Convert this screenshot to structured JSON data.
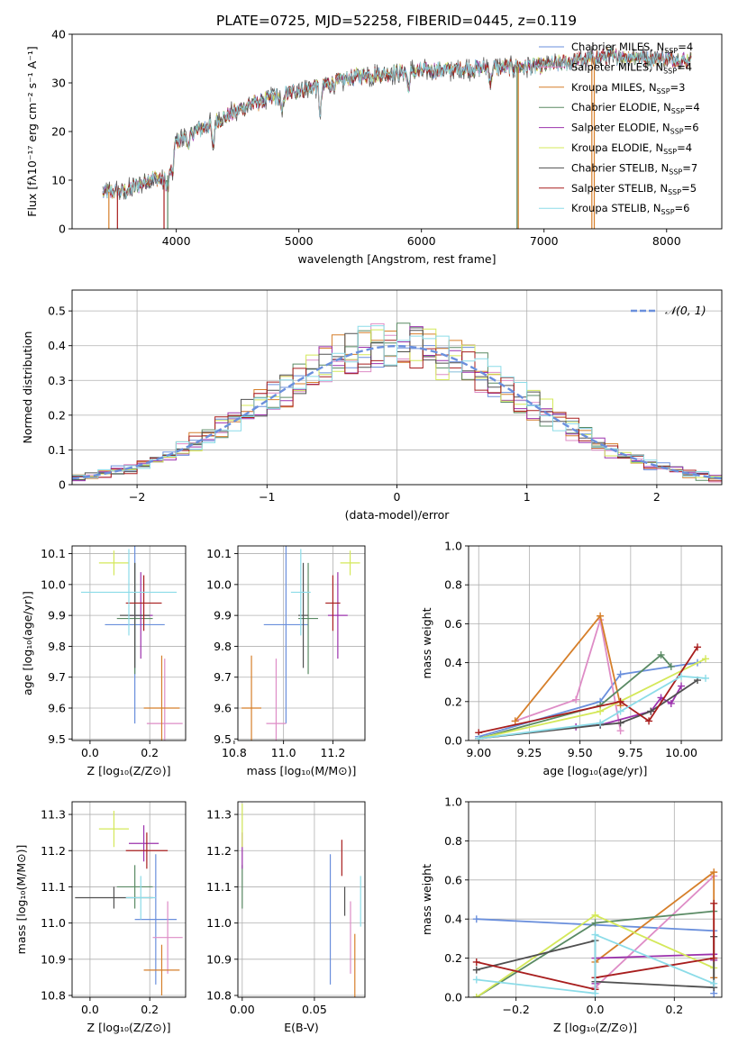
{
  "figure_title": "PLATE=0725, MJD=52258, FIBERID=0445, z=0.119",
  "legend_labels": [
    {
      "name": "Chabrier MILES, N",
      "sub": "SSP",
      "suffix": "=4",
      "color": "#6a8fdc"
    },
    {
      "name": "Salpeter MILES, N",
      "sub": "SSP",
      "suffix": "=4",
      "color": "#de8cc6"
    },
    {
      "name": "Kroupa MILES, N",
      "sub": "SSP",
      "suffix": "=3",
      "color": "#d67f2a"
    },
    {
      "name": "Chabrier ELODIE, N",
      "sub": "SSP",
      "suffix": "=4",
      "color": "#5a8a64"
    },
    {
      "name": "Salpeter ELODIE, N",
      "sub": "SSP",
      "suffix": "=6",
      "color": "#9c32ad"
    },
    {
      "name": "Kroupa ELODIE, N",
      "sub": "SSP",
      "suffix": "=4",
      "color": "#d4e85a"
    },
    {
      "name": "Chabrier STELIB, N",
      "sub": "SSP",
      "suffix": "=7",
      "color": "#505050"
    },
    {
      "name": "Salpeter STELIB, N",
      "sub": "SSP",
      "suffix": "=5",
      "color": "#a81e1e"
    },
    {
      "name": "Kroupa STELIB, N",
      "sub": "SSP",
      "suffix": "=6",
      "color": "#8cdce8"
    }
  ],
  "chart_data": [
    {
      "id": "spectrum",
      "type": "line",
      "xlabel": "wavelength [Angstrom, rest frame]",
      "ylabel": "Flux [fλ10⁻¹⁷ erg cm⁻² s⁻¹ A⁻¹]",
      "xlim": [
        3150,
        8450
      ],
      "ylim": [
        0,
        40
      ],
      "xticks": [
        4000,
        5000,
        6000,
        7000,
        8000
      ],
      "yticks": [
        0,
        10,
        20,
        30,
        40
      ],
      "continuum": [
        [
          3400,
          7.5
        ],
        [
          3600,
          7.8
        ],
        [
          3800,
          10.5
        ],
        [
          3920,
          10
        ],
        [
          4000,
          18
        ],
        [
          4200,
          20.5
        ],
        [
          4400,
          23
        ],
        [
          4600,
          25.5
        ],
        [
          4800,
          27
        ],
        [
          5000,
          28.5
        ],
        [
          5200,
          29.5
        ],
        [
          5500,
          31.5
        ],
        [
          6000,
          32.5
        ],
        [
          6500,
          33
        ],
        [
          7000,
          33.5
        ],
        [
          7500,
          35.5
        ],
        [
          8000,
          35
        ],
        [
          8200,
          34.5
        ]
      ],
      "absorption": [
        [
          3933,
          3
        ],
        [
          3968,
          4
        ],
        [
          4101,
          3
        ],
        [
          4300,
          5
        ],
        [
          4861,
          4
        ],
        [
          5175,
          6
        ],
        [
          5893,
          4
        ],
        [
          6563,
          3
        ]
      ],
      "drops": [
        [
          3450,
          3520
        ],
        [
          3900,
          3930
        ],
        [
          6780,
          6790
        ],
        [
          7390,
          7410
        ]
      ]
    },
    {
      "id": "residuals",
      "type": "bar",
      "xlabel": "(data-model)/error",
      "ylabel": "Normed distribution",
      "xlim": [
        -2.5,
        2.5
      ],
      "ylim": [
        0,
        0.56
      ],
      "xticks": [
        -2,
        -1,
        0,
        1,
        2
      ],
      "xtick_labels": [
        "−2",
        "−1",
        "0",
        "1",
        "2"
      ],
      "yticks": [
        0,
        0.1,
        0.2,
        0.3,
        0.4,
        0.5
      ],
      "gaussian_label": "𝒩(0, 1)",
      "gaussian_color": "#6a8fdc",
      "bin_width": 0.1
    },
    {
      "id": "age_vs_Z",
      "type": "scatter",
      "xlabel": "Z [log₁₀(Z/Z⊙)]",
      "ylabel": "age  [log₁₀(age/yr)]",
      "xlim": [
        -0.06,
        0.32
      ],
      "ylim": [
        9.495,
        10.125
      ],
      "xticks": [
        0,
        0.2
      ],
      "xtick_labels": [
        "0.0",
        "0.2"
      ],
      "yticks": [
        9.5,
        9.6,
        9.7,
        9.8,
        9.9,
        10.0,
        10.1
      ],
      "points": [
        {
          "x": 0.15,
          "y": 9.87,
          "xe": 0.1,
          "ye": 0.32,
          "color": "#6a8fdc"
        },
        {
          "x": 0.25,
          "y": 9.55,
          "xe": 0.06,
          "ye": 0.21,
          "color": "#de8cc6"
        },
        {
          "x": 0.24,
          "y": 9.6,
          "xe": 0.06,
          "ye": 0.17,
          "color": "#d67f2a"
        },
        {
          "x": 0.15,
          "y": 9.89,
          "xe": 0.06,
          "ye": 0.18,
          "color": "#5a8a64"
        },
        {
          "x": 0.17,
          "y": 9.9,
          "xe": 0.04,
          "ye": 0.14,
          "color": "#9c32ad"
        },
        {
          "x": 0.08,
          "y": 10.07,
          "xe": 0.05,
          "ye": 0.04,
          "color": "#d4e85a"
        },
        {
          "x": 0.15,
          "y": 9.9,
          "xe": 0.05,
          "ye": 0.17,
          "color": "#505050"
        },
        {
          "x": 0.18,
          "y": 9.94,
          "xe": 0.06,
          "ye": 0.09,
          "color": "#a81e1e"
        },
        {
          "x": 0.13,
          "y": 9.975,
          "xe": 0.16,
          "ye": 0.14,
          "color": "#8cdce8"
        }
      ]
    },
    {
      "id": "age_vs_mass",
      "type": "scatter",
      "xlabel": "mass [log₁₀(M/M⊙)]",
      "ylabel": "",
      "xlim": [
        10.815,
        11.33
      ],
      "ylim": [
        9.495,
        10.125
      ],
      "xticks": [
        10.8,
        11.0,
        11.2
      ],
      "xtick_labels": [
        "10.8",
        "11.0",
        "11.2"
      ],
      "yticks": [
        9.5,
        9.6,
        9.7,
        9.8,
        9.9,
        10.0,
        10.1
      ],
      "points": [
        {
          "x": 11.01,
          "y": 9.87,
          "xe": 0.09,
          "ye": 0.32,
          "color": "#6a8fdc"
        },
        {
          "x": 10.97,
          "y": 9.55,
          "xe": 0.04,
          "ye": 0.21,
          "color": "#de8cc6"
        },
        {
          "x": 10.87,
          "y": 9.6,
          "xe": 0.04,
          "ye": 0.17,
          "color": "#d67f2a"
        },
        {
          "x": 11.1,
          "y": 9.89,
          "xe": 0.04,
          "ye": 0.18,
          "color": "#5a8a64"
        },
        {
          "x": 11.22,
          "y": 9.9,
          "xe": 0.04,
          "ye": 0.14,
          "color": "#9c32ad"
        },
        {
          "x": 11.27,
          "y": 10.07,
          "xe": 0.04,
          "ye": 0.04,
          "color": "#d4e85a"
        },
        {
          "x": 11.08,
          "y": 9.9,
          "xe": 0.02,
          "ye": 0.17,
          "color": "#505050"
        },
        {
          "x": 11.2,
          "y": 9.94,
          "xe": 0.03,
          "ye": 0.09,
          "color": "#a81e1e"
        },
        {
          "x": 11.07,
          "y": 9.975,
          "xe": 0.04,
          "ye": 0.14,
          "color": "#8cdce8"
        }
      ]
    },
    {
      "id": "weight_vs_age",
      "type": "line",
      "xlabel": "age  [log₁₀(age/yr)]",
      "ylabel": "mass weight",
      "xlim": [
        8.95,
        10.2
      ],
      "ylim": [
        0,
        1
      ],
      "xticks": [
        9.0,
        9.25,
        9.5,
        9.75,
        10.0
      ],
      "xtick_labels": [
        "9.00",
        "9.25",
        "9.50",
        "9.75",
        "10.00"
      ],
      "yticks": [
        0,
        0.2,
        0.4,
        0.6,
        0.8,
        1.0
      ],
      "ytick_labels": [
        "0.0",
        "0.2",
        "0.4",
        "0.6",
        "0.8",
        "1.0"
      ],
      "series": [
        {
          "color": "#6a8fdc",
          "x": [
            9.0,
            9.6,
            9.7,
            10.08
          ],
          "y": [
            0.02,
            0.2,
            0.34,
            0.4
          ]
        },
        {
          "color": "#de8cc6",
          "x": [
            9.18,
            9.48,
            9.6,
            9.7
          ],
          "y": [
            0.1,
            0.21,
            0.62,
            0.05
          ]
        },
        {
          "color": "#d67f2a",
          "x": [
            9.18,
            9.6,
            9.7
          ],
          "y": [
            0.1,
            0.64,
            0.18
          ]
        },
        {
          "color": "#5a8a64",
          "x": [
            9.0,
            9.6,
            9.9,
            9.95
          ],
          "y": [
            0.01,
            0.18,
            0.44,
            0.38
          ]
        },
        {
          "color": "#9c32ad",
          "x": [
            9.48,
            9.6,
            9.85,
            9.9,
            9.95,
            10.0
          ],
          "y": [
            0.07,
            0.08,
            0.15,
            0.22,
            0.19,
            0.28
          ]
        },
        {
          "color": "#d4e85a",
          "x": [
            9.0,
            9.6,
            10.12
          ],
          "y": [
            0.01,
            0.15,
            0.42
          ]
        },
        {
          "color": "#505050",
          "x": [
            9.0,
            9.6,
            9.7,
            9.85,
            10.08
          ],
          "y": [
            0.01,
            0.08,
            0.09,
            0.15,
            0.31
          ]
        },
        {
          "color": "#a81e1e",
          "x": [
            9.0,
            9.7,
            9.84,
            10.08
          ],
          "y": [
            0.04,
            0.2,
            0.1,
            0.48
          ]
        },
        {
          "color": "#8cdce8",
          "x": [
            9.0,
            9.6,
            9.7,
            10.0,
            10.12
          ],
          "y": [
            0.01,
            0.09,
            0.15,
            0.33,
            0.32
          ]
        }
      ]
    },
    {
      "id": "mass_vs_Z",
      "type": "scatter",
      "xlabel": "Z [log₁₀(Z/Z⊙)]",
      "ylabel": "mass [log₁₀(M/M⊙)]",
      "xlim": [
        -0.06,
        0.32
      ],
      "ylim": [
        10.795,
        11.335
      ],
      "xticks": [
        0,
        0.2
      ],
      "xtick_labels": [
        "0.0",
        "0.2"
      ],
      "yticks": [
        10.8,
        10.9,
        11.0,
        11.1,
        11.2,
        11.3
      ],
      "points": [
        {
          "x": 0.22,
          "y": 11.01,
          "xe": 0.07,
          "ye": 0.18,
          "color": "#6a8fdc"
        },
        {
          "x": 0.26,
          "y": 10.96,
          "xe": 0.05,
          "ye": 0.1,
          "color": "#de8cc6"
        },
        {
          "x": 0.24,
          "y": 10.87,
          "xe": 0.06,
          "ye": 0.07,
          "color": "#d67f2a"
        },
        {
          "x": 0.15,
          "y": 11.1,
          "xe": 0.06,
          "ye": 0.06,
          "color": "#5a8a64"
        },
        {
          "x": 0.18,
          "y": 11.22,
          "xe": 0.05,
          "ye": 0.05,
          "color": "#9c32ad"
        },
        {
          "x": 0.08,
          "y": 11.26,
          "xe": 0.05,
          "ye": 0.05,
          "color": "#d4e85a"
        },
        {
          "x": 0.08,
          "y": 11.07,
          "xe": 0.13,
          "ye": 0.03,
          "color": "#505050"
        },
        {
          "x": 0.19,
          "y": 11.2,
          "xe": 0.07,
          "ye": 0.05,
          "color": "#a81e1e"
        },
        {
          "x": 0.17,
          "y": 11.07,
          "xe": 0.05,
          "ye": 0.06,
          "color": "#8cdce8"
        }
      ]
    },
    {
      "id": "mass_vs_ebv",
      "type": "scatter",
      "xlabel": "E(B-V)",
      "ylabel": "",
      "xlim": [
        -0.003,
        0.085
      ],
      "ylim": [
        10.795,
        11.335
      ],
      "xticks": [
        0,
        0.05
      ],
      "xtick_labels": [
        "0.00",
        "0.05"
      ],
      "yticks": [
        10.8,
        10.9,
        11.0,
        11.1,
        11.2,
        11.3
      ],
      "points": [
        {
          "x": 0.061,
          "y": 11.01,
          "xe": 0,
          "ye": 0.18,
          "color": "#6a8fdc"
        },
        {
          "x": 0.075,
          "y": 10.96,
          "xe": 0,
          "ye": 0.1,
          "color": "#de8cc6"
        },
        {
          "x": 0.078,
          "y": 10.87,
          "xe": 0,
          "ye": 0.1,
          "color": "#d67f2a"
        },
        {
          "x": 0.0,
          "y": 11.1,
          "xe": 0,
          "ye": 0.06,
          "color": "#5a8a64"
        },
        {
          "x": 0.0,
          "y": 11.2,
          "xe": 0,
          "ye": 0.05,
          "color": "#9c32ad"
        },
        {
          "x": 0.0,
          "y": 11.27,
          "xe": 0,
          "ye": 0.06,
          "color": "#d4e85a"
        },
        {
          "x": 0.071,
          "y": 11.06,
          "xe": 0,
          "ye": 0.04,
          "color": "#505050"
        },
        {
          "x": 0.069,
          "y": 11.18,
          "xe": 0,
          "ye": 0.05,
          "color": "#a81e1e"
        },
        {
          "x": 0.082,
          "y": 11.06,
          "xe": 0,
          "ye": 0.07,
          "color": "#8cdce8"
        }
      ]
    },
    {
      "id": "weight_vs_Z",
      "type": "line",
      "xlabel": "Z [log₁₀(Z/Z⊙)]",
      "ylabel": "mass weight",
      "xlim": [
        -0.32,
        0.32
      ],
      "ylim": [
        0,
        1
      ],
      "xticks": [
        -0.2,
        0,
        0.2
      ],
      "xtick_labels": [
        "−0.2",
        "0.0",
        "0.2"
      ],
      "yticks": [
        0,
        0.2,
        0.4,
        0.6,
        0.8,
        1.0
      ],
      "ytick_labels": [
        "0.0",
        "0.2",
        "0.4",
        "0.6",
        "0.8",
        "1.0"
      ],
      "series": [
        {
          "color": "#6a8fdc",
          "x": [
            -0.3,
            0.3,
            0.3
          ],
          "y": [
            0.4,
            0.34,
            0.02
          ]
        },
        {
          "color": "#de8cc6",
          "x": [
            0.0,
            0.0,
            0.3
          ],
          "y": [
            0.1,
            0.05,
            0.62
          ]
        },
        {
          "color": "#d67f2a",
          "x": [
            0.0,
            0.3,
            0.3
          ],
          "y": [
            0.18,
            0.64,
            0.1
          ]
        },
        {
          "color": "#5a8a64",
          "x": [
            -0.3,
            0.0,
            0.3
          ],
          "y": [
            0.0,
            0.38,
            0.44
          ]
        },
        {
          "color": "#9c32ad",
          "x": [
            0.0,
            0.0,
            0.3,
            0.3
          ],
          "y": [
            0.07,
            0.2,
            0.22,
            0.19
          ]
        },
        {
          "color": "#d4e85a",
          "x": [
            -0.3,
            0.0,
            0.3
          ],
          "y": [
            0.0,
            0.42,
            0.15
          ]
        },
        {
          "color": "#505050",
          "x": [
            -0.3,
            0.0,
            0.0,
            0.3,
            0.3
          ],
          "y": [
            0.14,
            0.29,
            0.08,
            0.05,
            0.31
          ]
        },
        {
          "color": "#a81e1e",
          "x": [
            -0.3,
            0.0,
            0.0,
            0.3,
            0.3
          ],
          "y": [
            0.18,
            0.04,
            0.1,
            0.2,
            0.48
          ]
        },
        {
          "color": "#8cdce8",
          "x": [
            -0.3,
            0.0,
            0.0,
            0.3
          ],
          "y": [
            0.09,
            0.02,
            0.32,
            0.07
          ]
        }
      ]
    }
  ]
}
